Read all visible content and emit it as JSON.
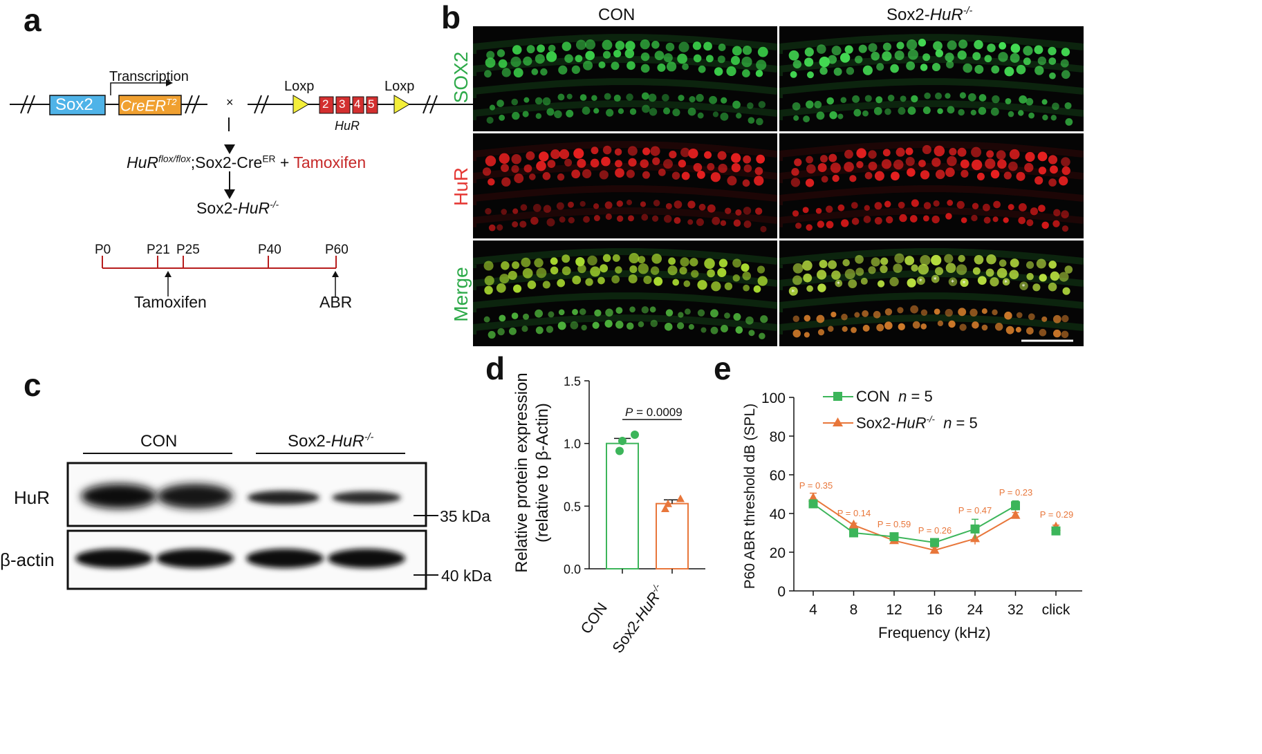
{
  "panels": {
    "a": {
      "letter": "a",
      "transcription": "Transcription",
      "gene1": "Sox2",
      "gene2": "CreER",
      "gene2_sup": "T2",
      "cross": "×",
      "loxp1": "Loxp",
      "loxp2": "Loxp",
      "exons": [
        "2",
        "3",
        "4",
        "5"
      ],
      "hur_label": "HuR",
      "genotype_main": "HuR",
      "genotype_sup": "flox/flox",
      "genotype_rest": ";Sox2-Cre",
      "genotype_rest_sup": "ER",
      "plus": " + ",
      "tamoxifen_red": "Tamoxifen",
      "result_prefix": "Sox2-",
      "result_gene": "HuR",
      "result_sup": "-/-",
      "timeline": [
        "P0",
        "P21",
        "P25",
        "P40",
        "P60"
      ],
      "tamoxifen_label": "Tamoxifen",
      "abr_label": "ABR"
    },
    "b": {
      "letter": "b",
      "col_con": "CON",
      "col_ko_prefix": "Sox2-",
      "col_ko_gene": "HuR",
      "col_ko_sup": "-/-",
      "rows": [
        "SOX2",
        "HuR",
        "Merge"
      ]
    },
    "c": {
      "letter": "c",
      "con": "CON",
      "ko_prefix": "Sox2-",
      "ko_gene": "HuR",
      "ko_sup": "-/-",
      "hur": "HuR",
      "actin": "β-actin",
      "kda35": "35 kDa",
      "kda40": "40 kDa"
    },
    "d": {
      "letter": "d",
      "ylabel1": "Relative protein expression",
      "ylabel2": "(relative to β-Actin)",
      "pvalue_p": "P",
      "pvalue_rest": " = 0.0009",
      "xcat1": "CON",
      "xcat2_prefix": "Sox2-",
      "xcat2_gene": "HuR",
      "xcat2_sup": "-/-"
    },
    "e": {
      "letter": "e",
      "ylabel": "P60 ABR threshold dB (SPL)",
      "xlabel": "Frequency (kHz)",
      "legend_con": "CON",
      "legend_n": "n",
      "legend_n_val": " = 5",
      "legend_ko_prefix": "Sox2-",
      "legend_ko_gene": "HuR",
      "legend_ko_sup": "-/-",
      "pvalues": [
        "P = 0.35",
        "P = 0.14",
        "P = 0.59",
        "P = 0.26",
        "P = 0.47",
        "P = 0.23",
        "P = 0.29"
      ]
    }
  },
  "colors": {
    "green": "#3cb55a",
    "orange": "#e8763a",
    "red": "#d32f2f",
    "blue": "#4fb3e8",
    "creorange": "#f0a030",
    "yellow": "#f4ef3a"
  },
  "chart_data": [
    {
      "type": "bar",
      "categories": [
        "CON",
        "Sox2-HuR-/-"
      ],
      "values": [
        1.0,
        0.52
      ],
      "errors": [
        0.04,
        0.03
      ],
      "points": [
        [
          0.94,
          1.02,
          1.07
        ],
        [
          0.48,
          0.52,
          0.56
        ]
      ],
      "yticks": [
        0.0,
        0.5,
        1.0,
        1.5
      ],
      "ylim": [
        0,
        1.5
      ]
    },
    {
      "type": "line",
      "categories": [
        "4",
        "8",
        "12",
        "16",
        "24",
        "32",
        "click"
      ],
      "series": [
        {
          "name": "CON",
          "values": [
            45,
            30,
            28,
            25,
            32,
            44,
            31
          ],
          "errors": [
            2,
            1,
            1.5,
            2,
            5,
            2.5,
            1
          ]
        },
        {
          "name": "Sox2-HuR-/-",
          "values": [
            48,
            34,
            26,
            21,
            27,
            39,
            33
          ],
          "errors": [
            2.5,
            1,
            1,
            1.5,
            3,
            1.5,
            1
          ]
        }
      ],
      "yticks": [
        0,
        20,
        40,
        60,
        80,
        100
      ],
      "ylim": [
        0,
        100
      ]
    }
  ]
}
